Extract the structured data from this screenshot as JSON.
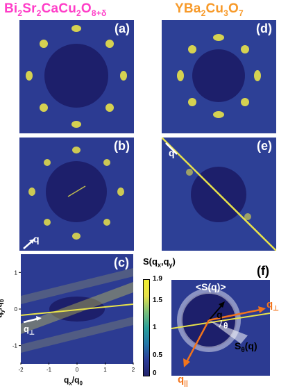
{
  "titles": {
    "bscco": {
      "parts": [
        "Bi",
        "2",
        "Sr",
        "2",
        "CaCu",
        "2",
        "O",
        "8+δ"
      ],
      "color": "#ff3ec8"
    },
    "ybco": {
      "parts": [
        "YBa",
        "2",
        "Cu",
        "3",
        "O",
        "7"
      ],
      "color": "#f79a2a"
    }
  },
  "panels": {
    "a": "(a)",
    "b": "(b)",
    "c": "(c)",
    "d": "(d)",
    "e": "(e)",
    "f": "(f)"
  },
  "arrow_labels": {
    "b_q": "q",
    "e_q": "q",
    "c_qperp": "q",
    "f_q": "q",
    "f_qperp": "q",
    "f_qpar": "q",
    "f_theta": "θ"
  },
  "panel_f": {
    "avg_label": "<S(q)>",
    "s_theta_label": "S",
    "s_theta_sub": "θ",
    "s_theta_arg": "(q)",
    "perp_sub": "⊥",
    "par_sub": "||",
    "arrow_color": "#f2741c"
  },
  "colorbar": {
    "label": "S(q",
    "label_x_sub": "x",
    "label_mid": ",q",
    "label_y_sub": "y",
    "label_end": ")",
    "ticks": [
      "1.9",
      "1.5",
      "1",
      "0.5",
      "0"
    ],
    "colormap": [
      "#24246e",
      "#2c3d99",
      "#2377a8",
      "#2aa09a",
      "#7cc07a",
      "#e8e24a",
      "#f2ef30"
    ]
  },
  "chart_data": {
    "type": "heatmap",
    "xlabel": "q",
    "xlabel_x_sub": "x",
    "xlabel_rest": "/q",
    "xlabel_0_sub": "0",
    "ylabel": "q",
    "ylabel_y_sub": "y",
    "ylabel_rest": "/q",
    "ylabel_0_sub": "0",
    "x_ticks": [
      "-2",
      "-1",
      "0",
      "1",
      "2"
    ],
    "y_ticks": [
      "1",
      "0",
      "-1"
    ],
    "xlim": [
      -2,
      2
    ],
    "ylim": [
      -1.5,
      1.5
    ],
    "clim": [
      0,
      1.9
    ]
  }
}
